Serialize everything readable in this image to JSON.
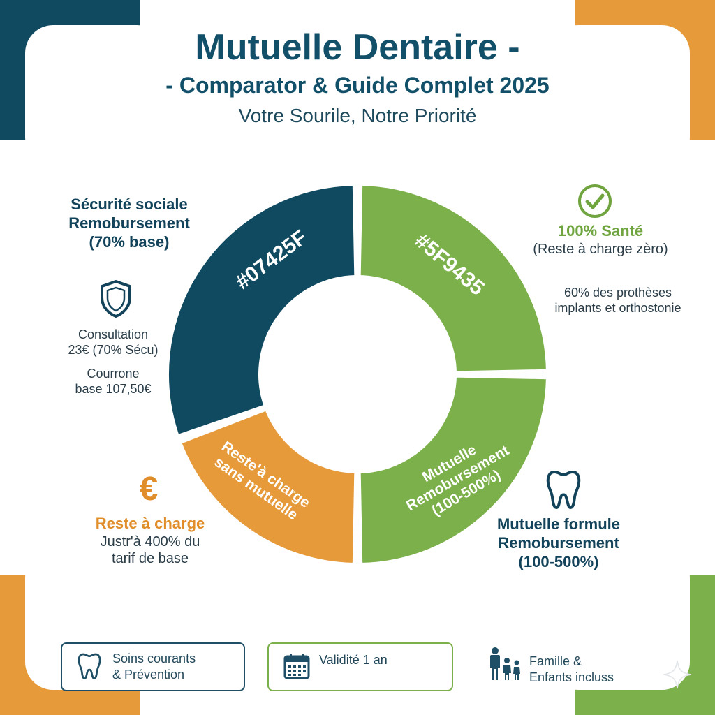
{
  "header": {
    "title_line1": "Mutuelle Dentaire -",
    "title_line2": "- Comparator & Guide Complet 2025",
    "subtitle": "Votre Sourile, Notre Priorité"
  },
  "chart_data": {
    "type": "pie",
    "donut": true,
    "slices": [
      {
        "label": "#07425F",
        "color": "#0f4a60",
        "start_deg": 250,
        "end_deg": 360
      },
      {
        "label": "#5F9435",
        "color": "#7cb04a",
        "start_deg": 0,
        "end_deg": 90
      },
      {
        "label": "Mutuelle\nRemobursement\n(100-500%)",
        "color": "#7cb04a",
        "start_deg": 90,
        "end_deg": 180
      },
      {
        "label": "Reste'à charge\nsans mutuelle",
        "color": "#e69a3a",
        "start_deg": 180,
        "end_deg": 250
      }
    ]
  },
  "left": {
    "secu": {
      "line1": "Sécurité sociale",
      "line2": "Remobursement",
      "line3": "(70% base)"
    },
    "consult": {
      "line1": "Consultation",
      "line2": "23€ (70% Sécu)"
    },
    "couronne": {
      "line1": "Courrone",
      "line2": "base 107,50€"
    },
    "reste": {
      "symbol": "€",
      "title": "Reste à charge",
      "line1": "Justr'à 400% du",
      "line2": "tarif de base"
    }
  },
  "right": {
    "sante": {
      "title": "100% Santé",
      "line1": "(Reste à charge zèro)"
    },
    "protheses": {
      "line1": "60% des prothèses",
      "line2": "implants et orthostonie"
    },
    "formule": {
      "line1": "Mutuelle formule",
      "line2": "Remobursement",
      "line3": "(100-500%)"
    }
  },
  "footer": {
    "soins": {
      "line1": "Soins courants",
      "line2": "& Prévention"
    },
    "validite": {
      "label": "Validité 1 an"
    },
    "famille": {
      "line1": "Famille &",
      "line2": "Enfants incluss"
    }
  },
  "icons": {
    "shield": "shield-icon",
    "check": "check-circle-icon",
    "tooth": "tooth-icon",
    "calendar": "calendar-icon",
    "family": "family-icon",
    "sparkle": "sparkle-icon"
  },
  "colors": {
    "navy": "#0f4a60",
    "green": "#7cb04a",
    "orange": "#e69a3a"
  }
}
